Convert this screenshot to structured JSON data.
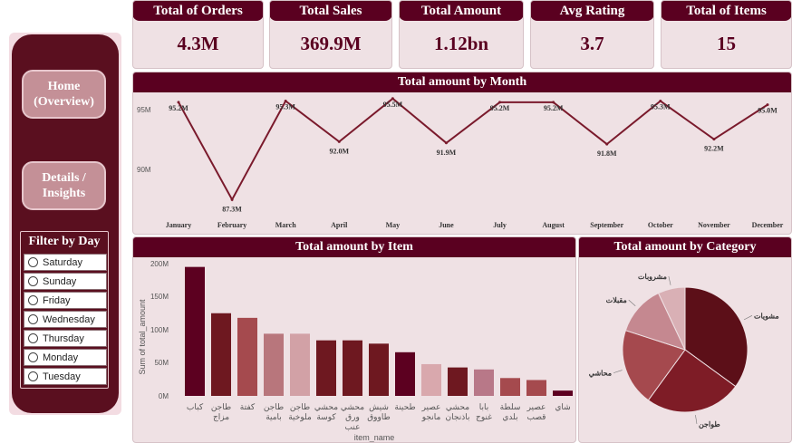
{
  "sidebar": {
    "home_label": "Home (Overview)",
    "details_label": "Details / Insights",
    "filter_title": "Filter by Day",
    "days": [
      "Saturday",
      "Sunday",
      "Friday",
      "Wednesday",
      "Thursday",
      "Monday",
      "Tuesday"
    ]
  },
  "kpis": [
    {
      "title": "Total of Orders",
      "value": "4.3M"
    },
    {
      "title": "Total Sales",
      "value": "369.9M"
    },
    {
      "title": "Total Amount",
      "value": "1.12bn"
    },
    {
      "title": "Avg Rating",
      "value": "3.7"
    },
    {
      "title": "Total of Items",
      "value": "15"
    }
  ],
  "month_chart": {
    "title": "Total amount by Month",
    "y_ticks": [
      "95M",
      "90M"
    ]
  },
  "item_chart": {
    "title": "Total amount by Item",
    "ylabel": "Sum of total_amount",
    "xlabel": "item_name",
    "y_ticks": [
      "200M",
      "150M",
      "100M",
      "50M",
      "0M"
    ]
  },
  "category_chart": {
    "title": "Total amount by Category"
  },
  "colors": {
    "primary": "#5a0020",
    "sidebar": "#5a0f1f",
    "panel_bg": "#efe1e4",
    "line": "#7a1a2c"
  },
  "chart_data": [
    {
      "type": "line",
      "title": "Total amount by Month",
      "x": [
        "January",
        "February",
        "March",
        "April",
        "May",
        "June",
        "July",
        "August",
        "September",
        "October",
        "November",
        "December"
      ],
      "values": [
        95.2,
        87.3,
        95.3,
        92.0,
        95.5,
        91.9,
        95.2,
        95.2,
        91.8,
        95.3,
        92.2,
        95.0
      ],
      "labels": [
        "95.2M",
        "87.3M",
        "95.3M",
        "92.0M",
        "95.5M",
        "91.9M",
        "95.2M",
        "95.2M",
        "91.8M",
        "95.3M",
        "92.2M",
        "95.0M"
      ],
      "ylim": [
        86,
        96
      ]
    },
    {
      "type": "bar",
      "title": "Total amount by Item",
      "ylabel": "Sum of total_amount",
      "xlabel": "item_name",
      "categories": [
        "كباب",
        "طاجن مزاج",
        "كفتة",
        "طاجن بامية",
        "طاجن ملوخية",
        "محشي كوسة",
        "محشي ورق عنب",
        "شيش طاووق",
        "طحينة",
        "عصير مانجو",
        "محشي باذنجان",
        "بابا غنوج",
        "سلطة بلدي",
        "عصير قصب",
        "شاي"
      ],
      "values": [
        195,
        125,
        118,
        94,
        94,
        84,
        84,
        79,
        66,
        48,
        43,
        40,
        27,
        24,
        8
      ],
      "colors": [
        "#5c0020",
        "#6e1820",
        "#a54a4e",
        "#b8767c",
        "#d2a1a6",
        "#6e1820",
        "#6e1820",
        "#6e1820",
        "#5c0020",
        "#d9a8ad",
        "#6e1820",
        "#b87888",
        "#a54a4e",
        "#a54a4e",
        "#5c0020"
      ],
      "ylim": [
        0,
        200
      ]
    },
    {
      "type": "pie",
      "title": "Total amount by Category",
      "categories": [
        "مشويات",
        "طواجن",
        "محاشي",
        "مقبلات",
        "مشروبات"
      ],
      "values": [
        35,
        25,
        20,
        13,
        7
      ],
      "colors": [
        "#5c0f18",
        "#7e1c26",
        "#a5494e",
        "#c58890",
        "#d9b0b5"
      ]
    }
  ]
}
